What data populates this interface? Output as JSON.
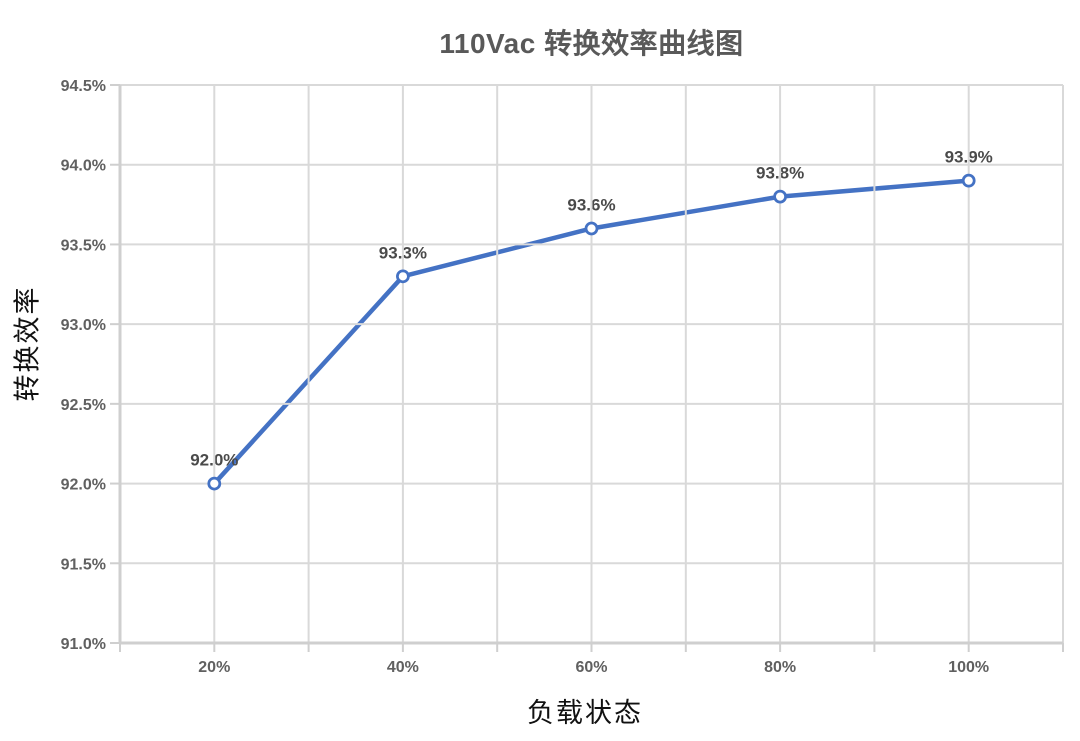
{
  "chart_data": {
    "type": "line",
    "title": "110Vac 转换效率曲线图",
    "xlabel": "负载状态",
    "ylabel": "转换效率",
    "categories": [
      "20%",
      "40%",
      "60%",
      "80%",
      "100%"
    ],
    "values": [
      92.0,
      93.3,
      93.6,
      93.8,
      93.9
    ],
    "point_labels": [
      "92.0%",
      "93.3%",
      "93.6%",
      "93.8%",
      "93.9%"
    ],
    "ylim": [
      91.0,
      94.5
    ],
    "y_tick_step": 0.5,
    "y_tick_labels": [
      "94.5%",
      "94.0%",
      "93.5%",
      "93.0%",
      "92.5%",
      "92.0%",
      "91.5%",
      "91.0%"
    ],
    "grid": true,
    "legend_position": "none",
    "marker": "circle-open",
    "colors": {
      "line": "#4472c4",
      "marker_fill": "#ffffff",
      "grid": "#d9d9d9",
      "axis": "#cfcfcf",
      "tick_text": "#606060",
      "data_label_text": "#4a4a4a",
      "title_text": "#595959",
      "axis_title_text": "#111111"
    }
  }
}
